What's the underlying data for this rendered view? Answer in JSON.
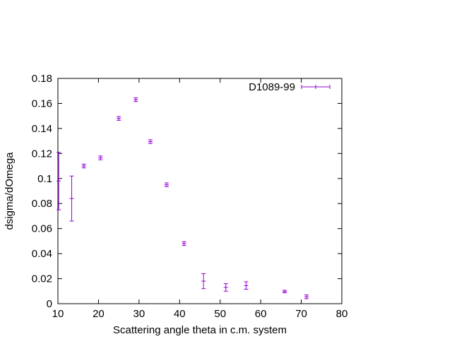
{
  "chart_data": {
    "type": "scatter",
    "title": "",
    "xlabel": "Scattering angle theta in c.m. system",
    "ylabel": "dsigma/dOmega",
    "xlim": [
      10,
      80
    ],
    "ylim": [
      0,
      0.18
    ],
    "xticks": [
      10,
      20,
      30,
      40,
      50,
      60,
      70,
      80
    ],
    "xtick_labels": [
      "10",
      "20",
      "30",
      "40",
      "50",
      "60",
      "70",
      "80"
    ],
    "yticks": [
      0,
      0.02,
      0.04,
      0.06,
      0.08,
      0.1,
      0.12,
      0.14,
      0.16,
      0.18
    ],
    "ytick_labels": [
      "0",
      "0.02",
      "0.04",
      "0.06",
      "0.08",
      "0.1",
      "0.12",
      "0.14",
      "0.16",
      "0.18"
    ],
    "grid": false,
    "legend_position": "top-right",
    "color": "#9400d3",
    "series": [
      {
        "name": "D1089-99",
        "points": [
          {
            "x": 10.2,
            "y": 0.098,
            "yerr": 0.023
          },
          {
            "x": 13.4,
            "y": 0.084,
            "yerr": 0.018
          },
          {
            "x": 16.4,
            "y": 0.11,
            "yerr": 0.0015
          },
          {
            "x": 20.5,
            "y": 0.1165,
            "yerr": 0.0015
          },
          {
            "x": 25.0,
            "y": 0.148,
            "yerr": 0.0015
          },
          {
            "x": 29.2,
            "y": 0.163,
            "yerr": 0.0015
          },
          {
            "x": 32.8,
            "y": 0.1295,
            "yerr": 0.0015
          },
          {
            "x": 36.8,
            "y": 0.095,
            "yerr": 0.0015
          },
          {
            "x": 41.1,
            "y": 0.048,
            "yerr": 0.0015
          },
          {
            "x": 45.9,
            "y": 0.018,
            "yerr": 0.006
          },
          {
            "x": 51.4,
            "y": 0.013,
            "yerr": 0.003
          },
          {
            "x": 56.4,
            "y": 0.0145,
            "yerr": 0.003
          },
          {
            "x": 65.9,
            "y": 0.0097,
            "yerr": 0.001
          },
          {
            "x": 71.3,
            "y": 0.0055,
            "yerr": 0.0015
          }
        ]
      }
    ]
  }
}
